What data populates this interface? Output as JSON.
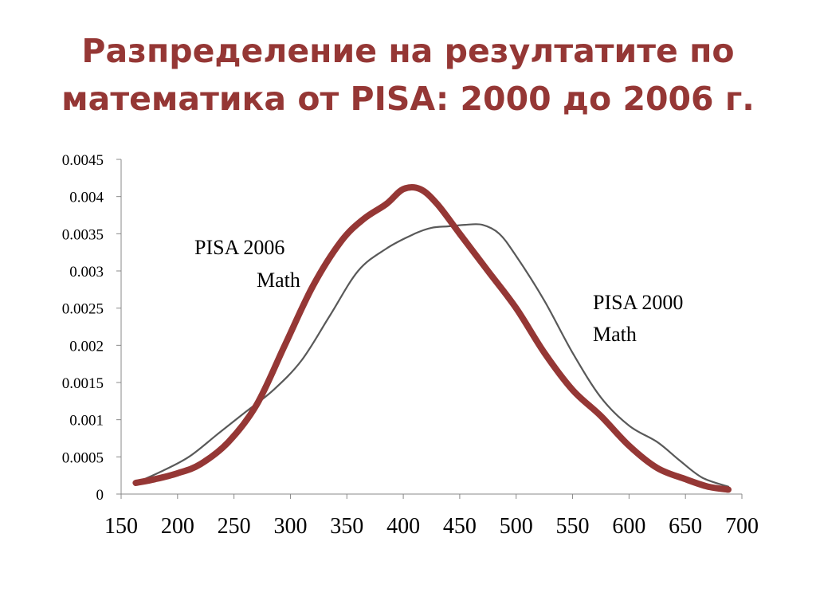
{
  "slide": {
    "title_line1": "Разпределение на резултатите по",
    "title_line2": "математика от PISA: 2000 до 2006 г."
  },
  "chart_data": {
    "type": "line",
    "xlim": [
      150,
      700
    ],
    "ylim": [
      0,
      0.0045
    ],
    "x_ticks": [
      150,
      200,
      250,
      300,
      350,
      400,
      450,
      500,
      550,
      600,
      650,
      700
    ],
    "y_ticks": [
      0,
      0.0005,
      0.001,
      0.0015,
      0.002,
      0.0025,
      0.003,
      0.0035,
      0.004,
      0.0045
    ],
    "y_tick_labels": [
      "0",
      "0.0005",
      "0.001",
      "0.0015",
      "0.002",
      "0.0025",
      "0.003",
      "0.0035",
      "0.004",
      "0.0045"
    ],
    "x_tick_labels": [
      "150",
      "200",
      "250",
      "300",
      "350",
      "400",
      "450",
      "500",
      "550",
      "600",
      "650",
      "700"
    ],
    "grid": false,
    "series": [
      {
        "name": "PISA 2000 Math",
        "color": "#595959",
        "x": [
          163,
          185,
          210,
          235,
          260,
          285,
          310,
          335,
          360,
          385,
          410,
          425,
          440,
          455,
          470,
          485,
          500,
          525,
          550,
          575,
          600,
          625,
          645,
          665,
          688
        ],
        "y": [
          0.00015,
          0.0003,
          0.0005,
          0.0008,
          0.0011,
          0.0014,
          0.0018,
          0.0024,
          0.003,
          0.0033,
          0.0035,
          0.00358,
          0.0036,
          0.00362,
          0.00362,
          0.0035,
          0.0032,
          0.0026,
          0.0019,
          0.0013,
          0.00092,
          0.0007,
          0.00045,
          0.00022,
          0.0001
        ]
      },
      {
        "name": "PISA 2006 Math",
        "color": "#953735",
        "x": [
          163,
          180,
          200,
          220,
          245,
          270,
          295,
          320,
          345,
          365,
          385,
          400,
          415,
          430,
          450,
          475,
          500,
          525,
          550,
          575,
          600,
          625,
          650,
          670,
          688
        ],
        "y": [
          0.00015,
          0.0002,
          0.00028,
          0.0004,
          0.0007,
          0.0012,
          0.002,
          0.0028,
          0.0034,
          0.0037,
          0.0039,
          0.0041,
          0.0041,
          0.0039,
          0.0035,
          0.003,
          0.0025,
          0.0019,
          0.0014,
          0.00105,
          0.00065,
          0.00035,
          0.0002,
          0.0001,
          6e-05
        ]
      }
    ],
    "annotations": [
      {
        "series": "PISA 2006 Math",
        "line1": "PISA 2006",
        "line2": "Math"
      },
      {
        "series": "PISA 2000 Math",
        "line1": "PISA 2000",
        "line2": "Math"
      }
    ]
  }
}
